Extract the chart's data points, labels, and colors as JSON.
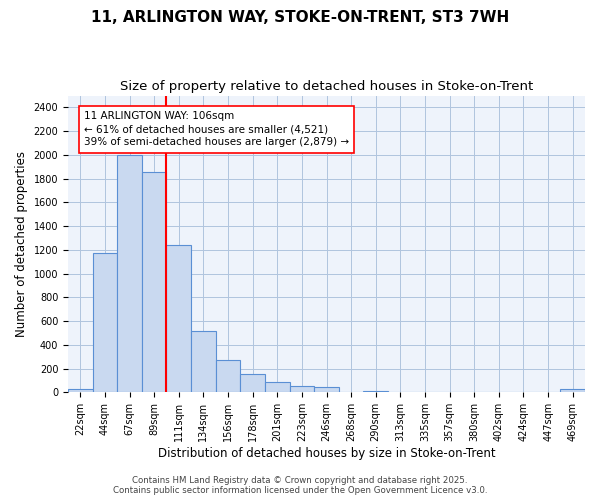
{
  "title_line1": "11, ARLINGTON WAY, STOKE-ON-TRENT, ST3 7WH",
  "title_line2": "Size of property relative to detached houses in Stoke-on-Trent",
  "xlabel": "Distribution of detached houses by size in Stoke-on-Trent",
  "ylabel": "Number of detached properties",
  "categories": [
    "22sqm",
    "44sqm",
    "67sqm",
    "89sqm",
    "111sqm",
    "134sqm",
    "156sqm",
    "178sqm",
    "201sqm",
    "223sqm",
    "246sqm",
    "268sqm",
    "290sqm",
    "313sqm",
    "335sqm",
    "357sqm",
    "380sqm",
    "402sqm",
    "424sqm",
    "447sqm",
    "469sqm"
  ],
  "values": [
    30,
    1170,
    2000,
    1860,
    1240,
    520,
    270,
    155,
    90,
    55,
    45,
    0,
    15,
    0,
    0,
    0,
    0,
    0,
    0,
    0,
    30
  ],
  "bar_color": "#c9d9f0",
  "bar_edge_color": "#5a8fd4",
  "vline_x_idx": 4,
  "vline_color": "red",
  "vline_lw": 1.5,
  "annotation_text": "11 ARLINGTON WAY: 106sqm\n← 61% of detached houses are smaller (4,521)\n39% of semi-detached houses are larger (2,879) →",
  "annotation_box_color": "white",
  "annotation_box_edge_color": "red",
  "ylim": [
    0,
    2500
  ],
  "yticks": [
    0,
    200,
    400,
    600,
    800,
    1000,
    1200,
    1400,
    1600,
    1800,
    2000,
    2200,
    2400
  ],
  "grid_color": "#b0c4de",
  "bg_color": "#eef3fb",
  "footer1": "Contains HM Land Registry data © Crown copyright and database right 2025.",
  "footer2": "Contains public sector information licensed under the Open Government Licence v3.0.",
  "title_fontsize": 11,
  "subtitle_fontsize": 9.5,
  "tick_fontsize": 7.0,
  "label_fontsize": 8.5,
  "annot_fontsize": 7.5,
  "footer_fontsize": 6.2
}
